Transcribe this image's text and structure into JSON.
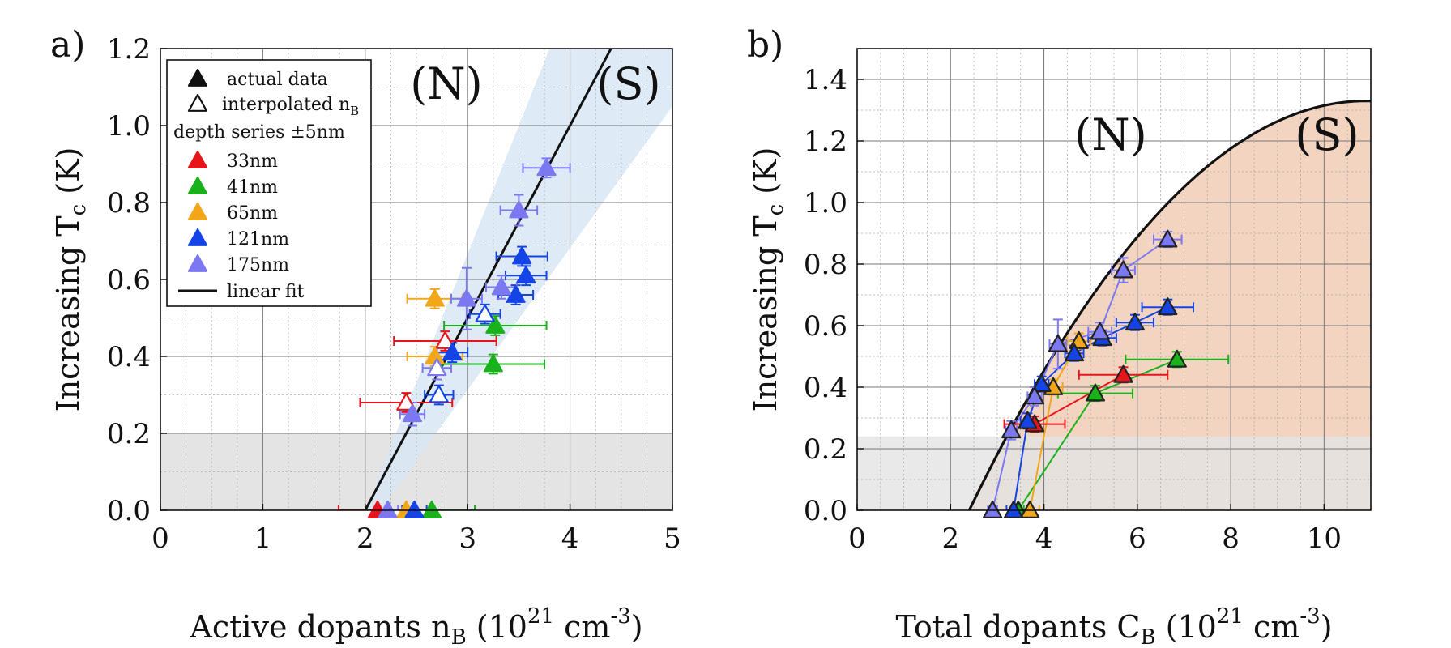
{
  "colors": {
    "s33": "#e8141b",
    "s41": "#19b21a",
    "s65": "#f2a71b",
    "s121": "#1544e6",
    "s175": "#7b78f2",
    "band_a": "#d8e7f5",
    "shade": "#e4e4e4",
    "peach": "#f2d4c0"
  },
  "chart_data": [
    {
      "type": "scatter",
      "panel_label": "a)",
      "xlabel": "Active dopants n",
      "xlabel_sub": "B",
      "xlabel_units": "(10",
      "xlabel_exp": "21",
      "xlabel_unit2": " cm",
      "xlabel_exp2": "-3",
      "xlabel_close": ")",
      "ylabel": "Increasing T",
      "ylabel_sub": "c",
      "ylabel_units": " (K)",
      "xlim": [
        0,
        5
      ],
      "ylim": [
        0,
        1.2
      ],
      "xticks": [
        "0",
        "1",
        "2",
        "3",
        "4",
        "5"
      ],
      "yticks": [
        "0.0",
        "0.2",
        "0.4",
        "0.6",
        "0.8",
        "1.0",
        "1.2"
      ],
      "region_N": "(N)",
      "region_S": "(S)",
      "legend": {
        "actual": "actual data",
        "interp": "interpolated n",
        "interp_sub": "B",
        "depth": "depth series ±5nm",
        "items": [
          "33nm",
          "41nm",
          "65nm",
          "121nm",
          "175nm"
        ],
        "fit": "linear fit"
      },
      "fit_line": {
        "x": [
          2.0,
          4.4
        ],
        "y": [
          0.0,
          1.2
        ]
      },
      "band": {
        "left": [
          [
            2.0,
            0.0
          ],
          [
            3.8,
            1.2
          ]
        ],
        "right": [
          [
            2.15,
            0.0
          ],
          [
            5.0,
            1.05
          ]
        ]
      },
      "shade_y": 0.2,
      "series": [
        {
          "name": "33nm",
          "points": [
            {
              "x": 2.12,
              "y": 0.0,
              "xerr": 0.38,
              "yerr": 0.0,
              "filled": true
            },
            {
              "x": 2.4,
              "y": 0.28,
              "xerr": 0.45,
              "yerr": 0.025,
              "filled": false
            },
            {
              "x": 2.78,
              "y": 0.44,
              "xerr": 0.5,
              "yerr": 0.025,
              "filled": false
            }
          ]
        },
        {
          "name": "41nm",
          "points": [
            {
              "x": 2.65,
              "y": 0.0,
              "xerr": 0.42,
              "yerr": 0.0,
              "filled": true
            },
            {
              "x": 3.27,
              "y": 0.48,
              "xerr": 0.5,
              "yerr": 0.025,
              "filled": true
            },
            {
              "x": 3.25,
              "y": 0.38,
              "xerr": 0.5,
              "yerr": 0.025,
              "filled": true
            }
          ]
        },
        {
          "name": "65nm",
          "points": [
            {
              "x": 2.4,
              "y": 0.0,
              "xerr": 0.2,
              "yerr": 0.0,
              "filled": true
            },
            {
              "x": 2.68,
              "y": 0.55,
              "xerr": 0.27,
              "yerr": 0.025,
              "filled": true
            },
            {
              "x": 2.68,
              "y": 0.4,
              "xerr": 0.27,
              "yerr": 0.025,
              "filled": true
            }
          ]
        },
        {
          "name": "121nm",
          "points": [
            {
              "x": 2.48,
              "y": 0.0,
              "xerr": 0.12,
              "yerr": 0.0,
              "filled": true
            },
            {
              "x": 2.72,
              "y": 0.3,
              "xerr": 0.14,
              "yerr": 0.025,
              "filled": false
            },
            {
              "x": 2.85,
              "y": 0.41,
              "xerr": 0.15,
              "yerr": 0.025,
              "filled": true
            },
            {
              "x": 3.17,
              "y": 0.51,
              "xerr": 0.15,
              "yerr": 0.025,
              "filled": false
            },
            {
              "x": 3.47,
              "y": 0.56,
              "xerr": 0.17,
              "yerr": 0.025,
              "filled": true
            },
            {
              "x": 3.57,
              "y": 0.61,
              "xerr": 0.2,
              "yerr": 0.025,
              "filled": true
            },
            {
              "x": 3.53,
              "y": 0.66,
              "xerr": 0.25,
              "yerr": 0.025,
              "filled": true
            }
          ]
        },
        {
          "name": "175nm",
          "points": [
            {
              "x": 2.22,
              "y": 0.0,
              "xerr": 0.1,
              "yerr": 0.0,
              "filled": true
            },
            {
              "x": 2.46,
              "y": 0.25,
              "xerr": 0.12,
              "yerr": 0.03,
              "filled": true
            },
            {
              "x": 2.7,
              "y": 0.37,
              "xerr": 0.14,
              "yerr": 0.03,
              "filled": false
            },
            {
              "x": 2.99,
              "y": 0.55,
              "xerr": 0.15,
              "yerr": 0.08,
              "filled": true
            },
            {
              "x": 3.33,
              "y": 0.58,
              "xerr": 0.15,
              "yerr": 0.03,
              "filled": true
            },
            {
              "x": 3.5,
              "y": 0.78,
              "xerr": 0.18,
              "yerr": 0.04,
              "filled": true
            },
            {
              "x": 3.77,
              "y": 0.89,
              "xerr": 0.23,
              "yerr": 0.025,
              "filled": true
            }
          ]
        }
      ]
    },
    {
      "type": "scatter",
      "panel_label": "b)",
      "xlabel": "Total dopants C",
      "xlabel_sub": "B",
      "xlabel_units": "(10",
      "xlabel_exp": "21",
      "xlabel_unit2": " cm",
      "xlabel_exp2": "-3",
      "xlabel_close": ")",
      "ylabel": "Increasing T",
      "ylabel_sub": "c",
      "ylabel_units": " (K)",
      "xlim": [
        0,
        11
      ],
      "ylim": [
        0,
        1.5
      ],
      "xticks": [
        "0",
        "2",
        "4",
        "6",
        "8",
        "10"
      ],
      "yticks": [
        "0.0",
        "0.2",
        "0.4",
        "0.6",
        "0.8",
        "1.0",
        "1.2",
        "1.4"
      ],
      "region_N": "(N)",
      "region_S": "(S)",
      "boundary": {
        "x0": 2.4,
        "xpeak": 10.9,
        "ypeak": 1.33
      },
      "shade_y": 0.24,
      "series": [
        {
          "name": "33nm",
          "points": [
            {
              "x": 3.8,
              "y": 0.28,
              "xerr": 0.65,
              "yerr": 0.025
            },
            {
              "x": 5.7,
              "y": 0.44,
              "xerr": 0.95,
              "yerr": 0.025
            }
          ]
        },
        {
          "name": "41nm",
          "points": [
            {
              "x": 3.45,
              "y": 0.0,
              "xerr": 0.12,
              "yerr": 0.0
            },
            {
              "x": 5.1,
              "y": 0.38,
              "xerr": 0.8,
              "yerr": 0.025
            },
            {
              "x": 6.85,
              "y": 0.49,
              "xerr": 1.1,
              "yerr": 0.025
            }
          ]
        },
        {
          "name": "65nm",
          "points": [
            {
              "x": 3.7,
              "y": 0.0,
              "xerr": 0.2,
              "yerr": 0.0
            },
            {
              "x": 4.2,
              "y": 0.4,
              "xerr": 0.2,
              "yerr": 0.025
            },
            {
              "x": 4.75,
              "y": 0.55,
              "xerr": 0.25,
              "yerr": 0.025
            }
          ]
        },
        {
          "name": "121nm",
          "points": [
            {
              "x": 3.35,
              "y": 0.0,
              "xerr": 0.15,
              "yerr": 0.0
            },
            {
              "x": 3.65,
              "y": 0.29,
              "xerr": 0.15,
              "yerr": 0.025
            },
            {
              "x": 3.95,
              "y": 0.41,
              "xerr": 0.15,
              "yerr": 0.025
            },
            {
              "x": 4.65,
              "y": 0.51,
              "xerr": 0.2,
              "yerr": 0.025
            },
            {
              "x": 5.25,
              "y": 0.56,
              "xerr": 0.3,
              "yerr": 0.025
            },
            {
              "x": 5.95,
              "y": 0.61,
              "xerr": 0.4,
              "yerr": 0.025
            },
            {
              "x": 6.65,
              "y": 0.66,
              "xerr": 0.55,
              "yerr": 0.025
            }
          ]
        },
        {
          "name": "175nm",
          "points": [
            {
              "x": 2.9,
              "y": 0.0,
              "xerr": 0.1,
              "yerr": 0.0
            },
            {
              "x": 3.3,
              "y": 0.26,
              "xerr": 0.12,
              "yerr": 0.03
            },
            {
              "x": 3.8,
              "y": 0.37,
              "xerr": 0.15,
              "yerr": 0.03
            },
            {
              "x": 4.3,
              "y": 0.54,
              "xerr": 0.18,
              "yerr": 0.08
            },
            {
              "x": 5.2,
              "y": 0.58,
              "xerr": 0.25,
              "yerr": 0.03
            },
            {
              "x": 5.7,
              "y": 0.78,
              "xerr": 0.25,
              "yerr": 0.04
            },
            {
              "x": 6.65,
              "y": 0.88,
              "xerr": 0.3,
              "yerr": 0.025
            }
          ]
        }
      ]
    }
  ]
}
